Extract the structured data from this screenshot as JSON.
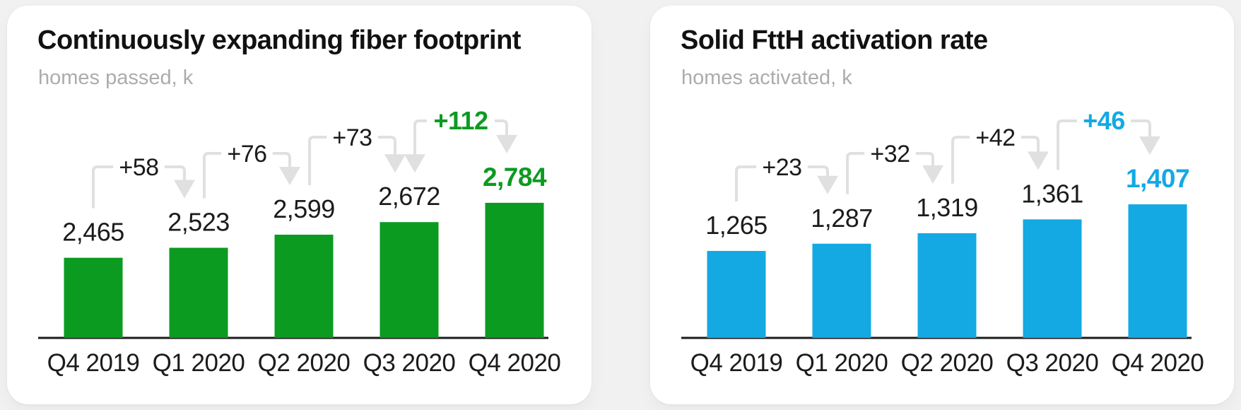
{
  "page": {
    "background_color": "#F1F1F1",
    "card_color": "#FFFFFF"
  },
  "chart_data": [
    {
      "type": "bar",
      "title": "Continuously expanding fiber footprint",
      "subtitle": "homes passed, k",
      "categories": [
        "Q4 2019",
        "Q1 2020",
        "Q2 2020",
        "Q3 2020",
        "Q4 2020"
      ],
      "values": [
        2465,
        2523,
        2599,
        2672,
        2784
      ],
      "value_labels": [
        "2,465",
        "2,523",
        "2,599",
        "2,672",
        "2,784"
      ],
      "deltas": [
        {
          "label": "+58",
          "emphasized": false,
          "left_arrowhead": false
        },
        {
          "label": "+76",
          "emphasized": false,
          "left_arrowhead": false
        },
        {
          "label": "+73",
          "emphasized": false,
          "left_arrowhead": false
        },
        {
          "label": "+112",
          "emphasized": true,
          "left_arrowhead": true
        }
      ],
      "ylim": [
        2000,
        2800
      ],
      "highlight_last_value": true,
      "bar_color": "#0B9B20",
      "accent_color": "#0B9B20",
      "text_color": "#1B1B1B",
      "connector_color": "#E0E0E0",
      "axis_color": "#1B1B1B",
      "grid": false,
      "legend": "none"
    },
    {
      "type": "bar",
      "title": "Solid FttH activation rate",
      "subtitle": "homes activated, k",
      "categories": [
        "Q4 2019",
        "Q1 2020",
        "Q2 2020",
        "Q3 2020",
        "Q4 2020"
      ],
      "values": [
        1265,
        1287,
        1319,
        1361,
        1407
      ],
      "value_labels": [
        "1,265",
        "1,287",
        "1,319",
        "1,361",
        "1,407"
      ],
      "deltas": [
        {
          "label": "+23",
          "emphasized": false,
          "left_arrowhead": false
        },
        {
          "label": "+32",
          "emphasized": false,
          "left_arrowhead": false
        },
        {
          "label": "+42",
          "emphasized": false,
          "left_arrowhead": false
        },
        {
          "label": "+46",
          "emphasized": true,
          "left_arrowhead": false
        }
      ],
      "ylim": [
        1000,
        1420
      ],
      "highlight_last_value": true,
      "bar_color": "#14A9E3",
      "accent_color": "#14A9E3",
      "text_color": "#1B1B1B",
      "connector_color": "#E0E0E0",
      "axis_color": "#1B1B1B",
      "grid": false,
      "legend": "none"
    }
  ]
}
